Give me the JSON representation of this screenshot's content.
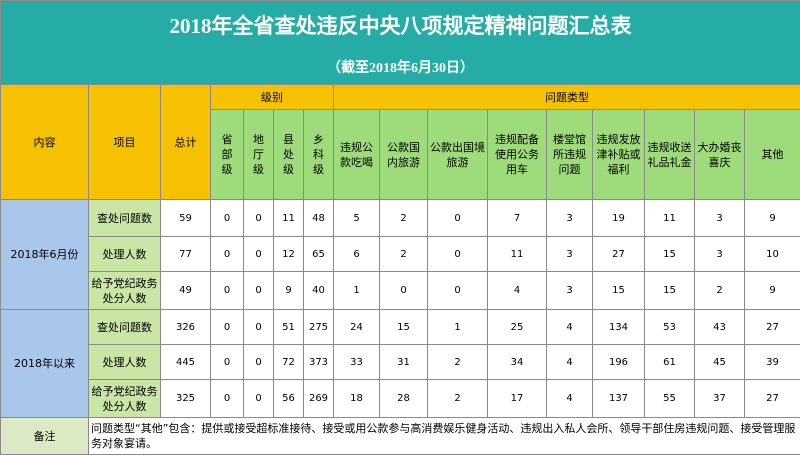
{
  "header": {
    "title": "2018年全省查处违反中央八项规定精神问题汇总表",
    "subtitle": "（截至2018年6月30日）"
  },
  "table": {
    "col_content": "内容",
    "col_item": "项目",
    "col_total": "总计",
    "level_group": "级别",
    "type_group": "问题类型",
    "levels": [
      "省部级",
      "地厅级",
      "县处级",
      "乡科级"
    ],
    "types": [
      "违规公款吃喝",
      "公款国内旅游",
      "公款出国境旅游",
      "违规配备使用公务用车",
      "楼堂馆所违规问题",
      "违规发放津补贴或福利",
      "违规收送礼品礼金",
      "大办婚丧喜庆",
      "其他"
    ],
    "groups": [
      {
        "label": "2018年6月份",
        "rows": [
          {
            "item": "查处问题数",
            "values": [
              59,
              0,
              0,
              11,
              48,
              5,
              2,
              0,
              7,
              3,
              19,
              11,
              3,
              9
            ]
          },
          {
            "item": "处理人数",
            "values": [
              77,
              0,
              0,
              12,
              65,
              6,
              2,
              0,
              11,
              3,
              27,
              15,
              3,
              10
            ]
          },
          {
            "item": "给予党纪政务处分人数",
            "values": [
              49,
              0,
              0,
              9,
              40,
              1,
              0,
              0,
              4,
              3,
              15,
              15,
              2,
              9
            ]
          }
        ]
      },
      {
        "label": "2018年以来",
        "rows": [
          {
            "item": "查处问题数",
            "values": [
              326,
              0,
              0,
              51,
              275,
              24,
              15,
              1,
              25,
              4,
              134,
              53,
              43,
              27
            ]
          },
          {
            "item": "处理人数",
            "values": [
              445,
              0,
              0,
              72,
              373,
              33,
              31,
              2,
              34,
              4,
              196,
              61,
              45,
              39
            ]
          },
          {
            "item": "给予党纪政务处分人数",
            "values": [
              325,
              0,
              0,
              56,
              269,
              18,
              28,
              2,
              17,
              4,
              137,
              55,
              37,
              27
            ]
          }
        ]
      }
    ],
    "note": {
      "label": "备注",
      "text": "问题类型“其他”包含：提供或接受超标准接待、接受或用公款参与高消费娱乐健身活动、违规出入私人会所、领导干部住房违规问题、接受管理服务对象宴请。"
    }
  }
}
